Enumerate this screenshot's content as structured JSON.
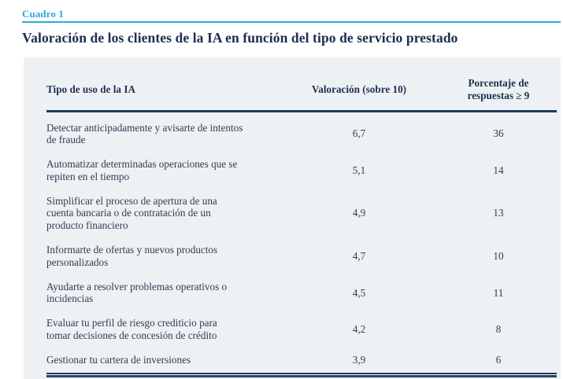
{
  "page": {
    "kicker": "Cuadro 1",
    "title": "Valoración de los clientes de la IA en función del tipo de servicio prestado"
  },
  "colors": {
    "accent_cyan": "#29a9e0",
    "title_navy": "#1b2e4d",
    "panel_background": "#eef1f3",
    "rule_navy": "#1f3a5f"
  },
  "chart_data": {
    "type": "table",
    "title": "Valoración de los clientes de la IA en función del tipo de servicio prestado",
    "columns": [
      "Tipo de uso de la IA",
      "Valoración (sobre 10)",
      "Porcentaje de respuestas ≥ 9"
    ],
    "rows": [
      {
        "tipo": "Detectar anticipadamente y avisarte de intentos de fraude",
        "valoracion": 6.7,
        "porcentaje": 36
      },
      {
        "tipo": "Automatizar determinadas operaciones que se repiten en el tiempo",
        "valoracion": 5.1,
        "porcentaje": 14
      },
      {
        "tipo": "Simplificar el proceso de apertura de una cuenta bancaria o de contratación de un producto financiero",
        "valoracion": 4.9,
        "porcentaje": 13
      },
      {
        "tipo": "Informarte de ofertas y nuevos productos personalizados",
        "valoracion": 4.7,
        "porcentaje": 10
      },
      {
        "tipo": "Ayudarte a resolver problemas operativos o incidencias",
        "valoracion": 4.5,
        "porcentaje": 11
      },
      {
        "tipo": "Evaluar tu perfil de riesgo crediticio para tomar decisiones de concesión de crédito",
        "valoracion": 4.2,
        "porcentaje": 8
      },
      {
        "tipo": "Gestionar tu cartera de inversiones",
        "valoracion": 3.9,
        "porcentaje": 6
      }
    ]
  },
  "table": {
    "header": {
      "col1": "Tipo de uso de la IA",
      "col2": "Valoración (sobre 10)",
      "col3": "Porcentaje de\nrespuestas ≥ 9"
    },
    "rows": [
      {
        "label": "Detectar anticipadamente y avisarte de intentos\nde fraude",
        "valoracion": "6,7",
        "porcentaje": "36"
      },
      {
        "label": "Automatizar determinadas operaciones que se\nrepiten en el tiempo",
        "valoracion": "5,1",
        "porcentaje": "14"
      },
      {
        "label": "Simplificar el proceso de apertura de una\ncuenta bancaria o de contratación de un\nproducto financiero",
        "valoracion": "4,9",
        "porcentaje": "13"
      },
      {
        "label": "Informarte de ofertas y nuevos productos\npersonalizados",
        "valoracion": "4,7",
        "porcentaje": "10"
      },
      {
        "label": "Ayudarte a resolver problemas operativos o\nincidencias",
        "valoracion": "4,5",
        "porcentaje": "11"
      },
      {
        "label": "Evaluar tu perfil de riesgo crediticio para\ntomar decisiones de concesión de crédito",
        "valoracion": "4,2",
        "porcentaje": "8"
      },
      {
        "label": "Gestionar tu cartera de inversiones",
        "valoracion": "3,9",
        "porcentaje": "6"
      }
    ]
  }
}
